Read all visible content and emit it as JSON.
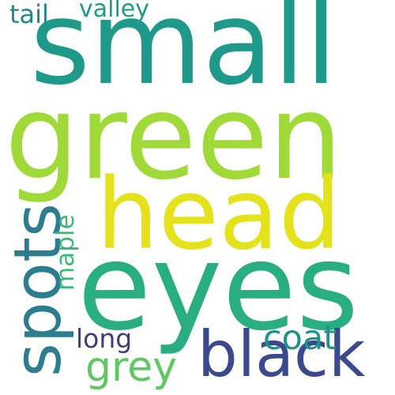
{
  "words": [
    {
      "key": "green",
      "text": "green",
      "color": "#a0da39"
    },
    {
      "key": "small",
      "text": "small",
      "color": "#1f9a8a"
    },
    {
      "key": "eyes",
      "text": "eyes",
      "color": "#28ae80"
    },
    {
      "key": "head",
      "text": "head",
      "color": "#e3e21b"
    },
    {
      "key": "black",
      "text": "black",
      "color": "#3b4a8c"
    },
    {
      "key": "spots",
      "text": "spots",
      "color": "#2c7d8e"
    },
    {
      "key": "grey",
      "text": "grey",
      "color": "#5ec962"
    },
    {
      "key": "coat",
      "text": "coat",
      "color": "#21918c"
    },
    {
      "key": "long",
      "text": "long",
      "color": "#453781"
    },
    {
      "key": "tail",
      "text": "tail",
      "color": "#24868e"
    },
    {
      "key": "valley",
      "text": "valley",
      "color": "#1e9b8a"
    },
    {
      "key": "maple",
      "text": "maple",
      "color": "#3aba76"
    }
  ]
}
